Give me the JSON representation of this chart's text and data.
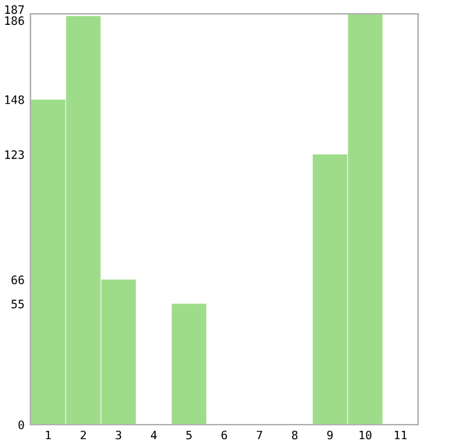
{
  "chart_data": {
    "type": "bar",
    "categories": [
      "1",
      "2",
      "3",
      "4",
      "5",
      "6",
      "7",
      "8",
      "9",
      "10",
      "11"
    ],
    "values": [
      148,
      186,
      66,
      0,
      55,
      0,
      0,
      0,
      123,
      187,
      0
    ],
    "color": "#9edc8a",
    "ylim": [
      0,
      187
    ],
    "yticks": [
      0,
      55,
      66,
      123,
      148,
      186,
      187
    ],
    "grid": false
  }
}
